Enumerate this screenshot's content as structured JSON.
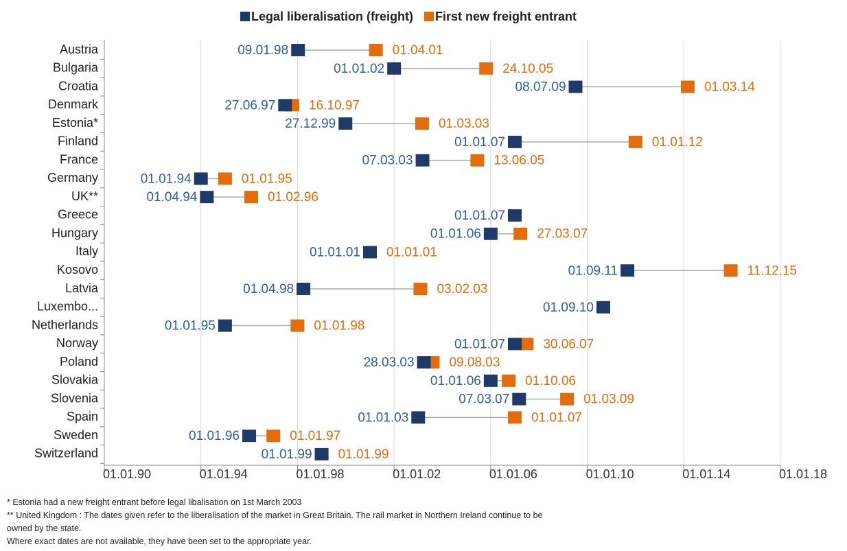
{
  "chart_data": {
    "type": "dumbbell",
    "categories": [
      "Austria",
      "Bulgaria",
      "Croatia",
      "Denmark",
      "Estonia*",
      "Finland",
      "France",
      "Germany",
      "UK**",
      "Greece",
      "Hungary",
      "Italy",
      "Kosovo",
      "Latvia",
      "Luxembo...",
      "Netherlands",
      "Norway",
      "Poland",
      "Slovakia",
      "Slovenia",
      "Spain",
      "Sweden",
      "Switzerland"
    ],
    "series": [
      {
        "name": "Legal liberalisation (freight)",
        "color": "#1f3a68",
        "label_color": "#2f5d9e",
        "values": [
          "1998-01-09",
          "2002-01-01",
          "2009-07-08",
          "1997-06-27",
          "1999-12-27",
          "2007-01-01",
          "2003-03-07",
          "1994-01-01",
          "1994-04-01",
          "2007-01-01",
          "2006-01-01",
          "2001-01-01",
          "2011-09-01",
          "1998-04-01",
          "2010-09-01",
          "1995-01-01",
          "2007-01-01",
          "2003-03-28",
          "2006-01-01",
          "2007-03-07",
          "2003-01-01",
          "1996-01-01",
          "1999-01-01"
        ],
        "value_labels": [
          "09.01.98",
          "01.01.02",
          "08.07.09",
          "27.06.97",
          "27.12.99",
          "01.01.07",
          "07.03.03",
          "01.01.94",
          "01.04.94",
          "01.01.07",
          "01.01.06",
          "01.01.01",
          "01.09.11",
          "01.04.98",
          "01.09.10",
          "01.01.95",
          "01.01.07",
          "28.03.03",
          "01.01.06",
          "07.03.07",
          "01.01.03",
          "01.01.96",
          "01.01.99"
        ]
      },
      {
        "name": "First new freight entrant",
        "color": "#e46c0a",
        "label_color": "#e46c0a",
        "values": [
          "2001-04-01",
          "2005-10-24",
          "2014-03-01",
          "1997-10-16",
          "2003-03-01",
          "2012-01-01",
          "2005-06-13",
          "1995-01-01",
          "1996-02-01",
          null,
          "2007-03-27",
          "2001-01-01",
          "2015-12-11",
          "2003-02-03",
          null,
          "1998-01-01",
          "2007-06-30",
          "2003-08-09",
          "2006-10-01",
          "2009-03-01",
          "2007-01-01",
          "1997-01-01",
          "1999-01-01"
        ],
        "value_labels": [
          "01.04.01",
          "24.10.05",
          "01.03.14",
          "16.10.97",
          "01.03.03",
          "01.01.12",
          "13.06.05",
          "01.01.95",
          "01.02.96",
          null,
          "27.03.07",
          "01.01.01",
          "11.12.15",
          "03.02.03",
          null,
          "01.01.98",
          "30.06.07",
          "09.08.03",
          "01.10.06",
          "01.03.09",
          "01.01.07",
          "01.01.97",
          "01.01.99"
        ]
      }
    ],
    "xlim": [
      "1990-01-01",
      "2018-01-01"
    ],
    "xticks": [
      {
        "value": "1990-01-01",
        "label": "01.01.90"
      },
      {
        "value": "1994-01-01",
        "label": "01.01.94"
      },
      {
        "value": "1998-01-01",
        "label": "01.01.98"
      },
      {
        "value": "2002-01-01",
        "label": "01.01.02"
      },
      {
        "value": "2006-01-01",
        "label": "01.01.06"
      },
      {
        "value": "2010-01-01",
        "label": "01.01.10"
      },
      {
        "value": "2014-01-01",
        "label": "01.01.14"
      },
      {
        "value": "2018-01-01",
        "label": "01.01.18"
      }
    ],
    "grid": true,
    "legend": "top",
    "notes": [
      "* Estonia had a new freight entrant before legal libalisation on 1st March 2003",
      "** United Kingdom : The dates given refer to the liberalisation of the  market in Great Britain. The rail market in Northern Ireland continue to be",
      "owned by the state.",
      "Where exact dates are not available, they have been set to the appropriate year."
    ]
  }
}
